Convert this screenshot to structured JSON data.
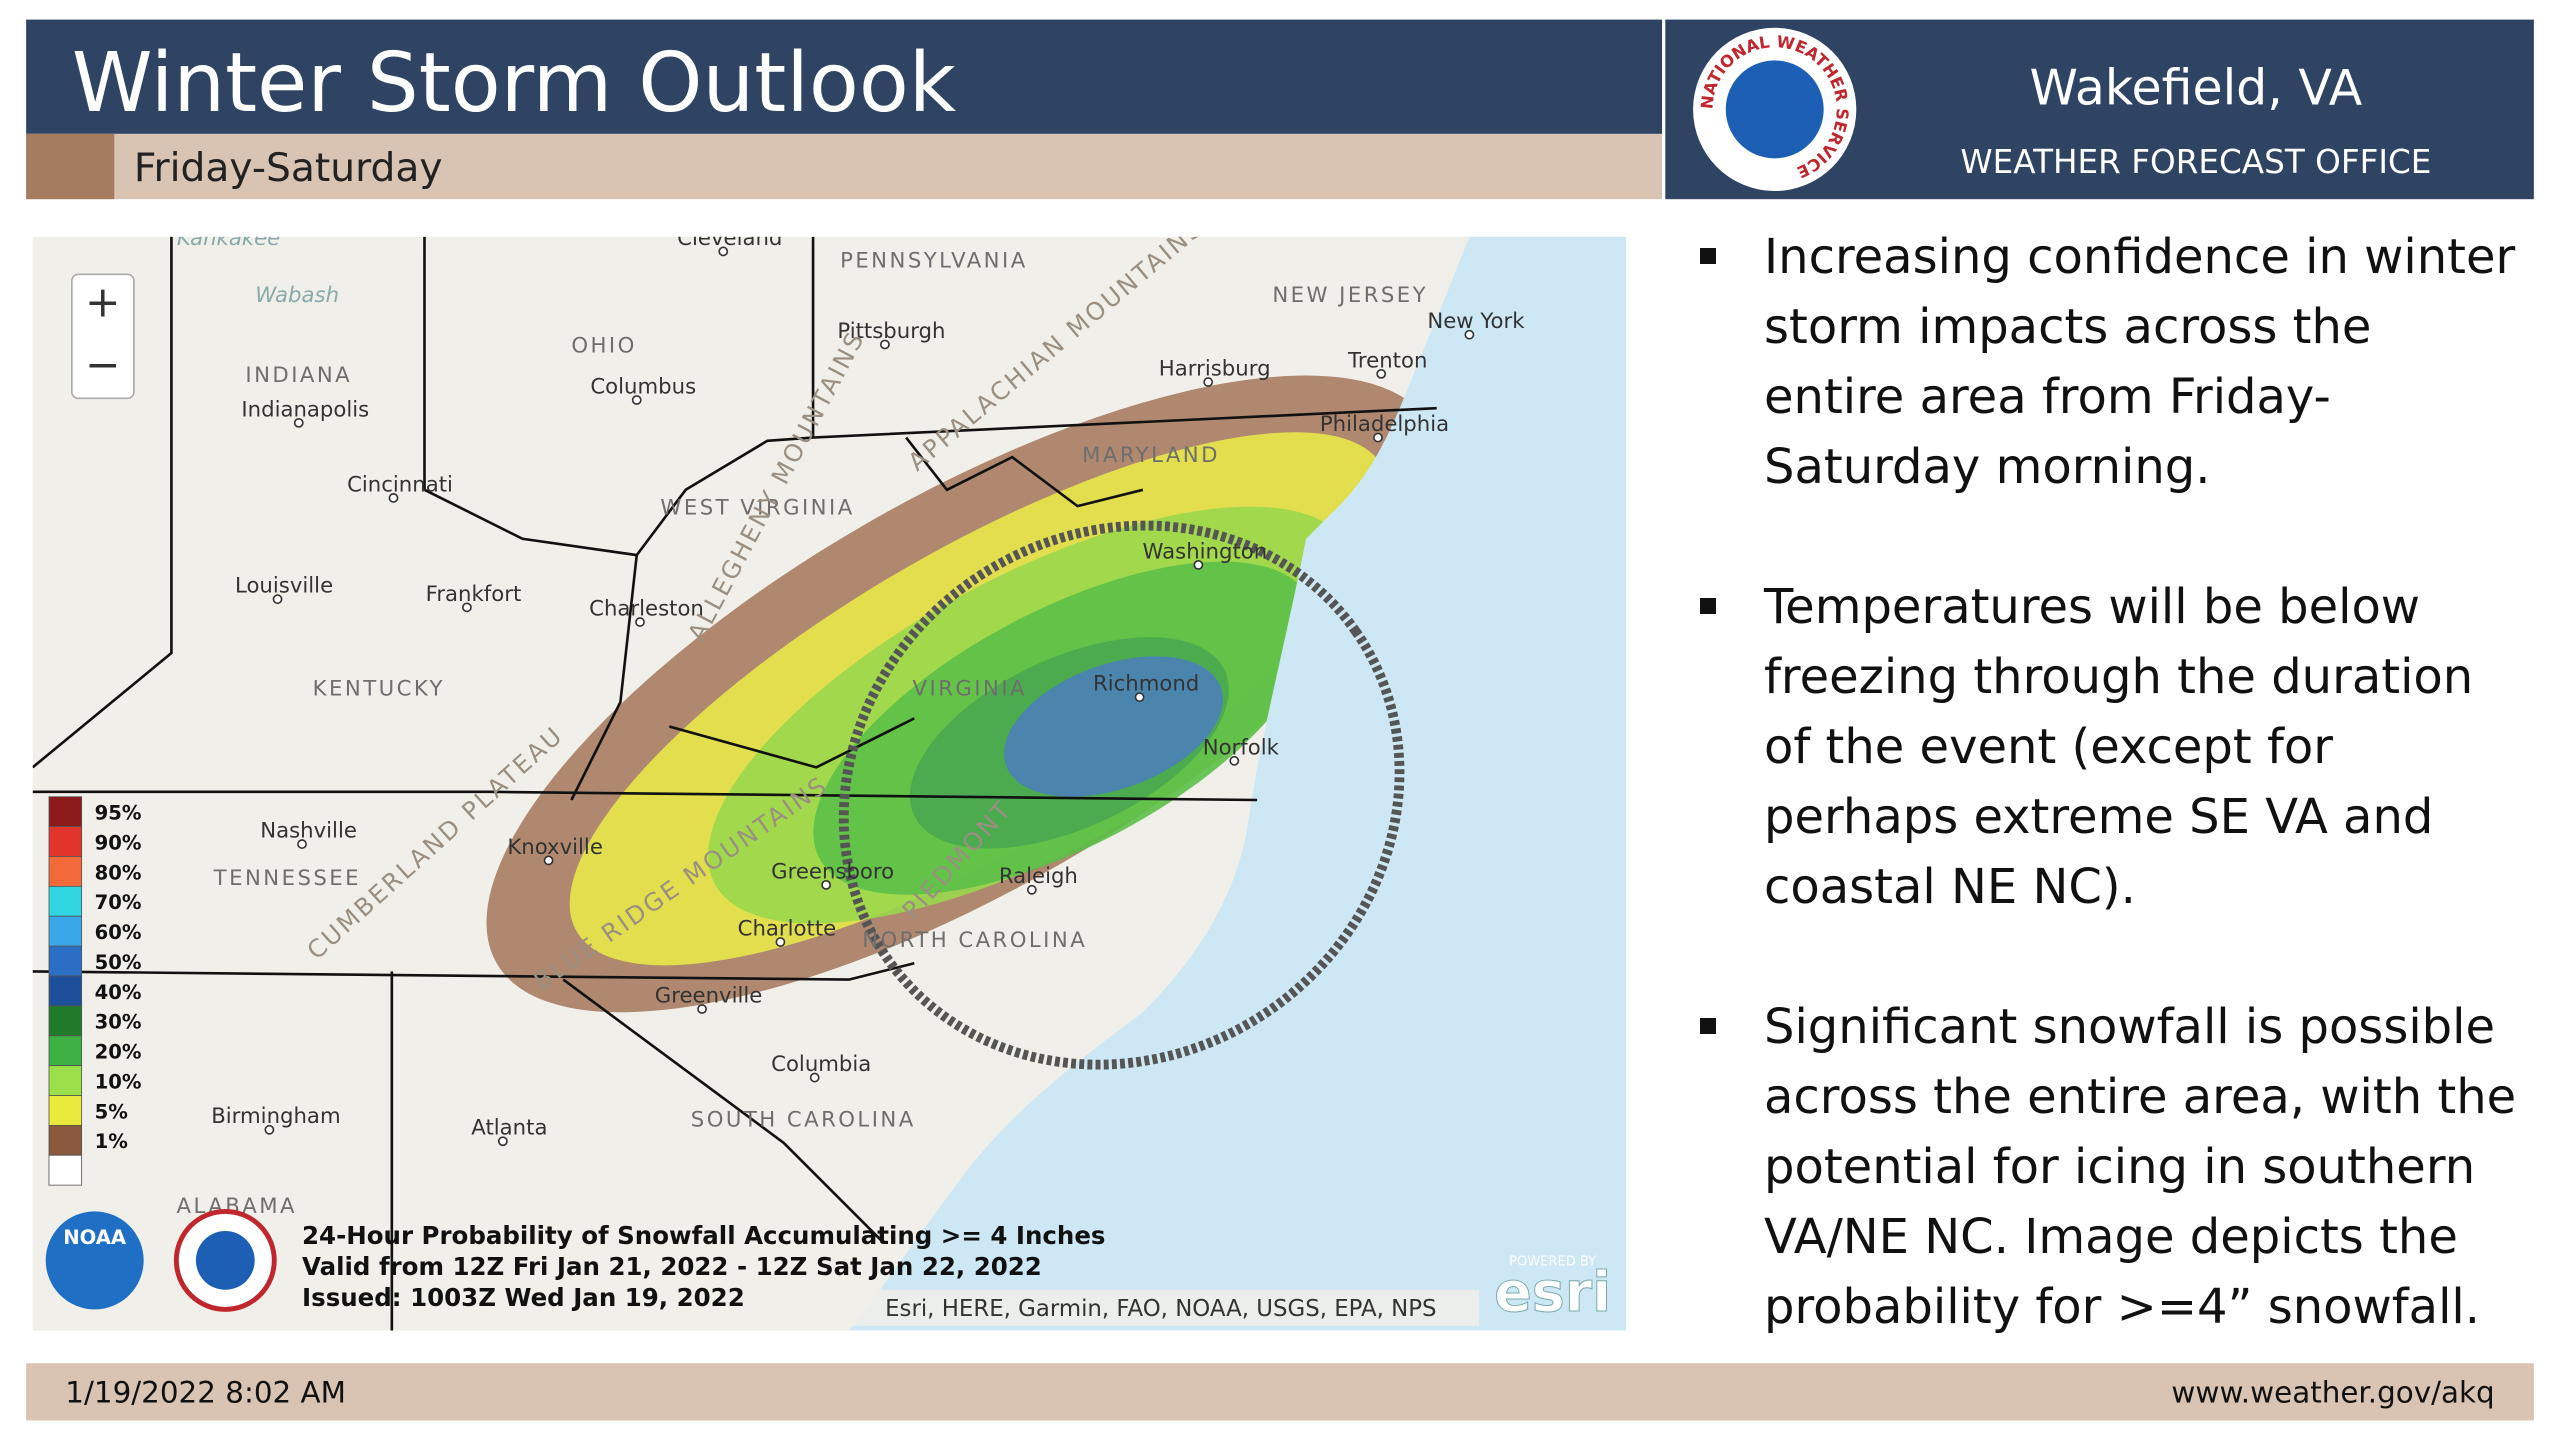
{
  "header": {
    "title": "Winter Storm Outlook",
    "subtitle": "Friday-Saturday"
  },
  "office": {
    "name": "Wakefield, VA",
    "subtitle": "WEATHER FORECAST OFFICE",
    "logo_text": "NATIONAL WEATHER SERVICE"
  },
  "map": {
    "zoom_in": "+",
    "zoom_out": "−",
    "labels": [
      "Cleveland",
      "PENNSYLVANIA",
      "Pittsburgh",
      "Harrisburg",
      "NEW JERSEY",
      "New York",
      "Trenton",
      "Philadelphia",
      "OHIO",
      "Columbus",
      "INDIANA",
      "Indianapolis",
      "Cincinnati",
      "WEST VIRGINIA",
      "MARYLAND",
      "Washington",
      "Louisville",
      "Frankfort",
      "Charleston",
      "KENTUCKY",
      "VIRGINIA",
      "Richmond",
      "Norfolk",
      "Nashville",
      "TENNESSEE",
      "Knoxville",
      "Greensboro",
      "Raleigh",
      "Charlotte",
      "NORTH CAROLINA",
      "Greenville",
      "Columbia",
      "SOUTH CAROLINA",
      "Birmingham",
      "Atlanta",
      "ALABAMA",
      "Wabash",
      "Kankakee",
      "ALLEGHENY MOUNTAINS",
      "APPALACHIAN MOUNTAINS",
      "CUMBERLAND PLATEAU",
      "BLUE RIDGE MOUNTAINS",
      "PIEDMONT"
    ],
    "legend": [
      {
        "label": "95%",
        "color": "#8b1a1a"
      },
      {
        "label": "90%",
        "color": "#e3342c"
      },
      {
        "label": "80%",
        "color": "#f26a3a"
      },
      {
        "label": "70%",
        "color": "#2fd6e0"
      },
      {
        "label": "60%",
        "color": "#3aa8e8"
      },
      {
        "label": "50%",
        "color": "#2a6fc4"
      },
      {
        "label": "40%",
        "color": "#1d4f9a"
      },
      {
        "label": "30%",
        "color": "#1f7a2a"
      },
      {
        "label": "20%",
        "color": "#3cb043"
      },
      {
        "label": "10%",
        "color": "#9be04a"
      },
      {
        "label": "5%",
        "color": "#eaea3c"
      },
      {
        "label": "1%",
        "color": "#8b5a3c"
      }
    ],
    "caption": [
      "24-Hour Probability of Snowfall Accumulating >= 4 Inches",
      "Valid from 12Z Fri Jan 21, 2022 - 12Z Sat Jan 22, 2022",
      "Issued: 1003Z Wed Jan 19, 2022"
    ],
    "attribution": "Esri, HERE, Garmin, FAO, NOAA, USGS, EPA, NPS",
    "esri_powered": "POWERED BY",
    "esri": "esri",
    "noaa": "NOAA"
  },
  "bullets": [
    "Increasing confidence in winter storm impacts across the entire area from Friday-Saturday morning.",
    "Temperatures will be below freezing through the duration of the event (except for perhaps extreme SE VA and coastal NE NC).",
    "Significant snowfall is possible across the entire area, with the potential for icing in southern VA/NE NC. Image depicts the probability for >=4” snowfall."
  ],
  "footer": {
    "date": "1/19/2022 8:02 AM",
    "url": "www.weather.gov/akq"
  }
}
